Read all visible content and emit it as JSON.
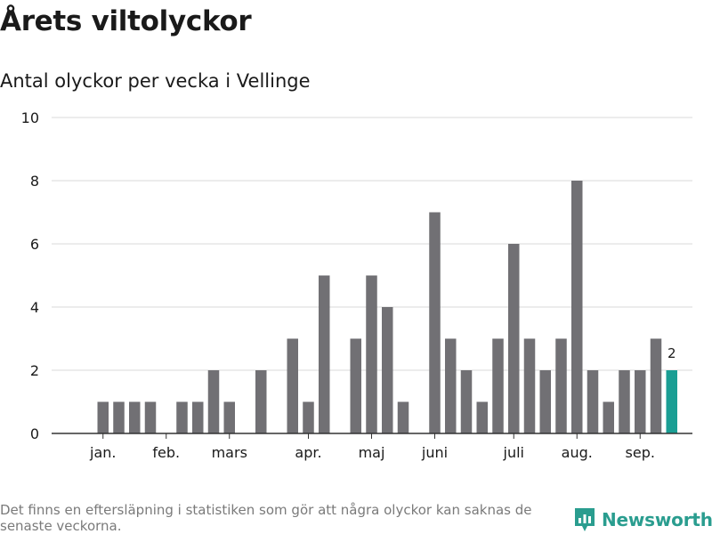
{
  "title": "Årets viltolyckor",
  "subtitle": "Antal olyckor per vecka i Vellinge",
  "footnote": "Det finns en eftersläpning i statistiken som gör att några olyckor kan saknas de senaste veckorna.",
  "brand": {
    "name": "Newsworthy",
    "icon": "newsworthy-logo-icon"
  },
  "colors": {
    "bar": "#717074",
    "highlight": "#1a9e94",
    "grid": "#d9d9d9",
    "axis": "#333333"
  },
  "chart_data": {
    "type": "bar",
    "values": [
      0,
      1,
      1,
      1,
      1,
      0,
      1,
      1,
      2,
      1,
      0,
      2,
      0,
      3,
      1,
      5,
      0,
      3,
      5,
      4,
      1,
      0,
      7,
      3,
      2,
      1,
      3,
      6,
      3,
      2,
      3,
      8,
      2,
      1,
      2,
      2,
      3,
      2
    ],
    "highlight_last": true,
    "last_value_label": "2",
    "month_labels": [
      {
        "label": "jan.",
        "week": 2
      },
      {
        "label": "feb.",
        "week": 6
      },
      {
        "label": "mars",
        "week": 10
      },
      {
        "label": "apr.",
        "week": 15
      },
      {
        "label": "maj",
        "week": 19
      },
      {
        "label": "juni",
        "week": 23
      },
      {
        "label": "juli",
        "week": 28
      },
      {
        "label": "aug.",
        "week": 32
      },
      {
        "label": "sep.",
        "week": 36
      }
    ],
    "yticks": [
      0,
      2,
      4,
      6,
      8,
      10
    ],
    "ylim": [
      0,
      10
    ],
    "grid": true
  }
}
